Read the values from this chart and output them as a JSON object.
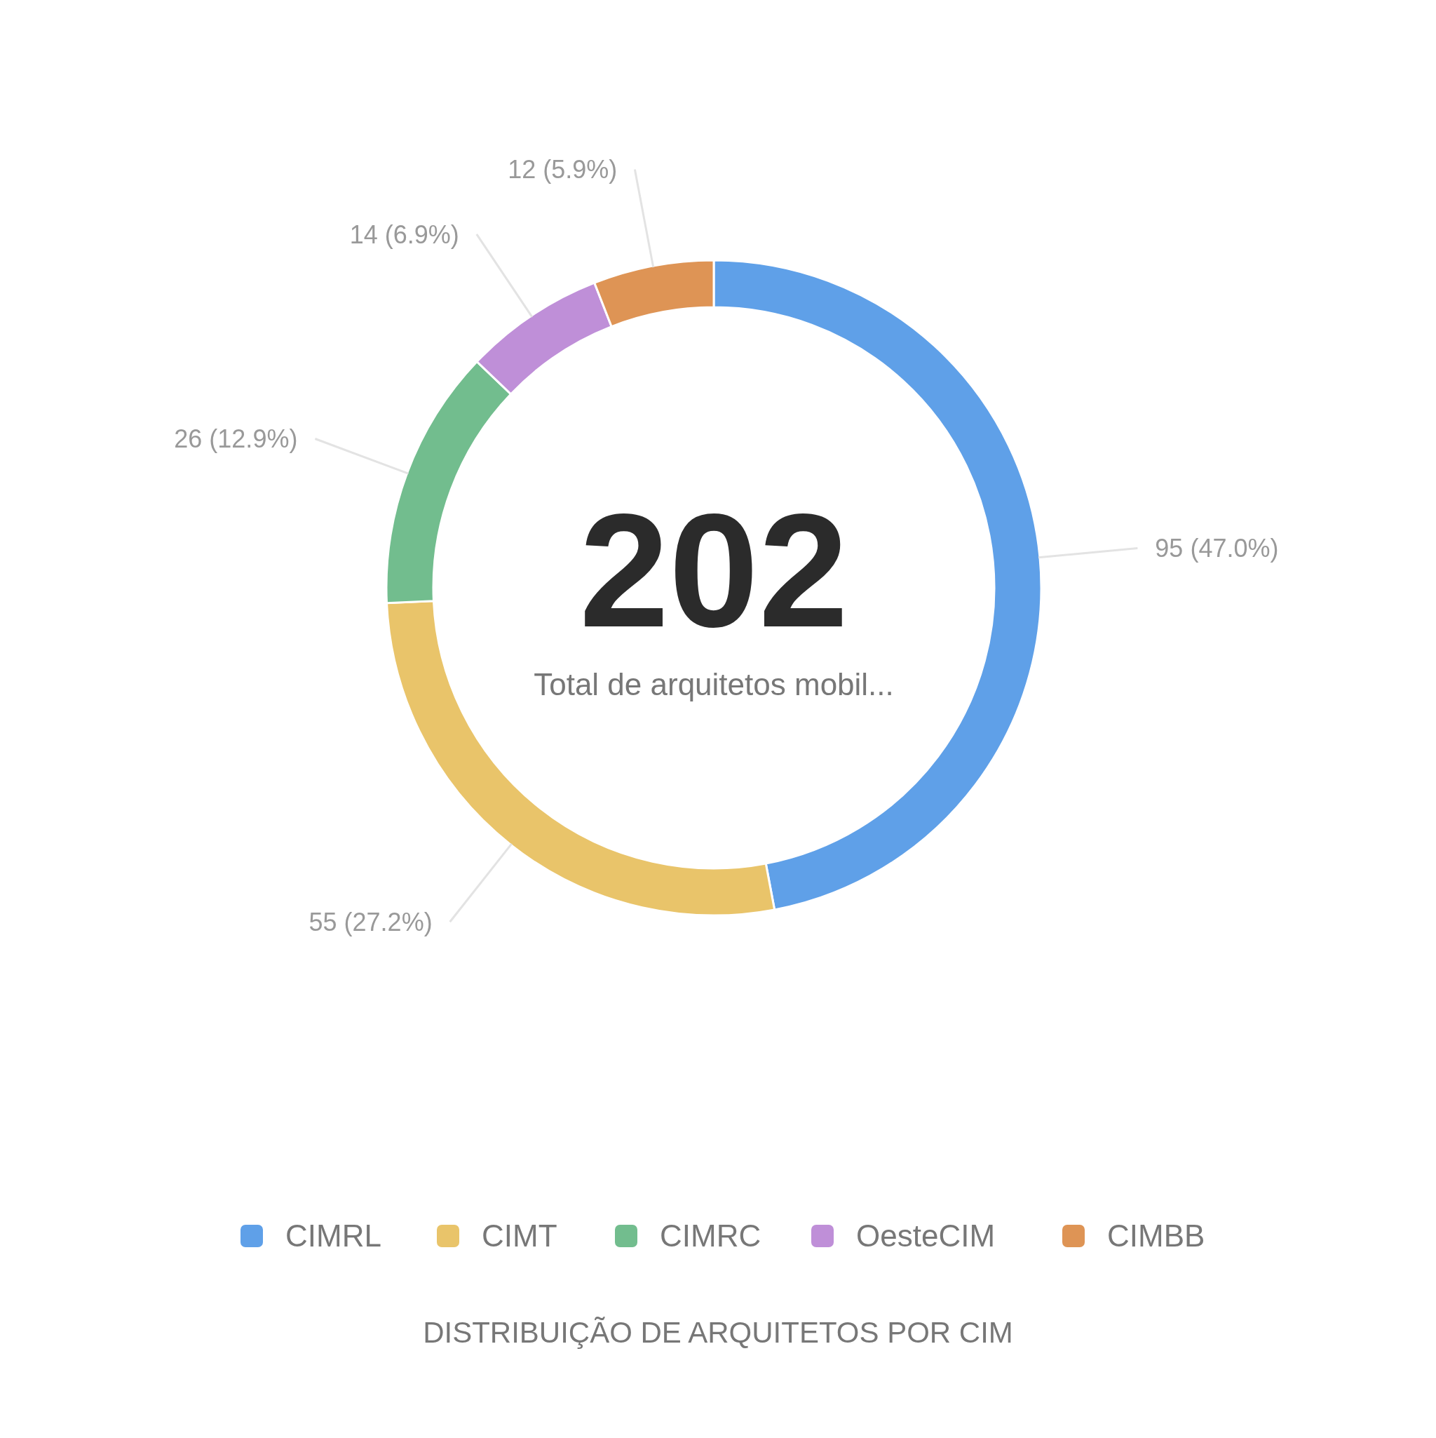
{
  "chart_data": {
    "type": "donut",
    "title": "DISTRIBUIÇÃO DE ARQUITETOS POR CIM",
    "categories": [
      "CIMRL",
      "CIMT",
      "CIMRC",
      "OesteCIM",
      "CIMBB"
    ],
    "values": [
      95,
      55,
      26,
      14,
      12
    ],
    "colors": [
      "#5fa0e8",
      "#e9c46a",
      "#72bd8e",
      "#bf8fd8",
      "#de9455"
    ],
    "value_labels": [
      "95 (47.0%)",
      "55 (27.2%)",
      "26 (12.9%)",
      "14 (6.9%)",
      "12 (5.9%)"
    ],
    "annotations": [
      "202",
      "Total de arquitetos mobil..."
    ],
    "legend": "bottom"
  }
}
